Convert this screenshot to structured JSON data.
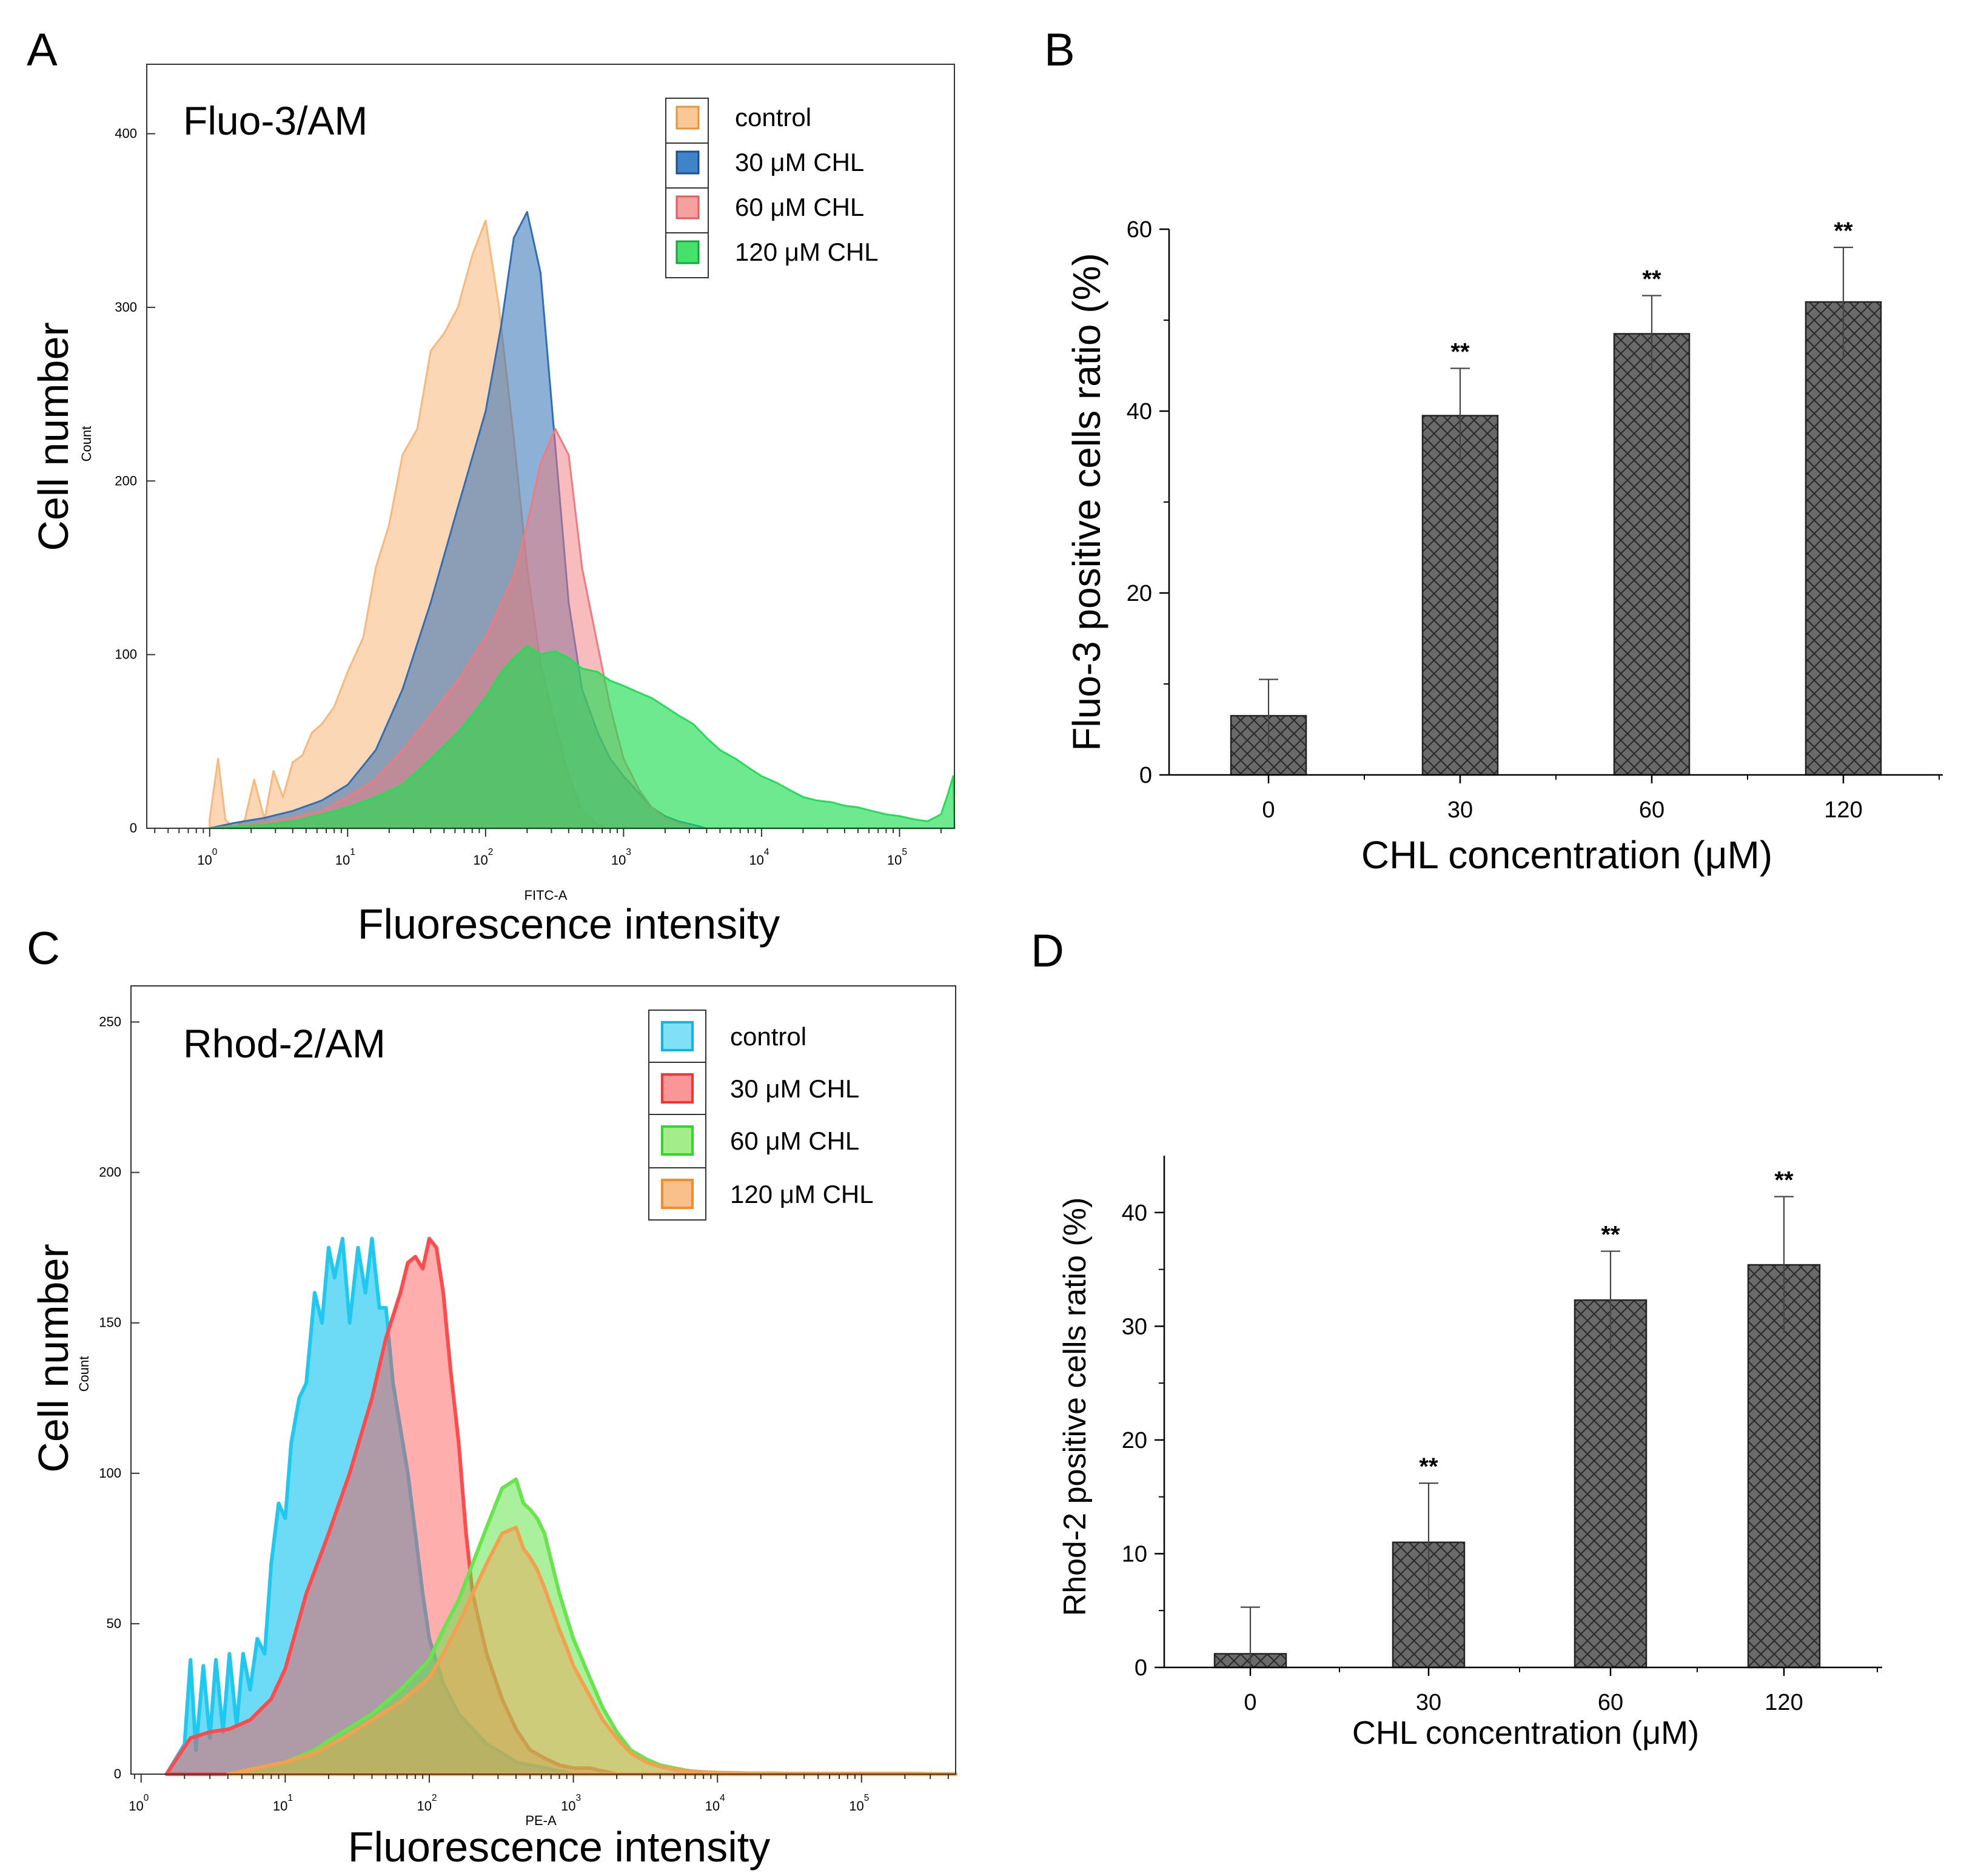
{
  "figure": {
    "panels": [
      {
        "id": "A",
        "label": "A"
      },
      {
        "id": "B",
        "label": "B"
      },
      {
        "id": "C",
        "label": "C"
      },
      {
        "id": "D",
        "label": "D"
      }
    ]
  },
  "chart_data": [
    {
      "panel": "A",
      "type": "area",
      "title": "Fluo-3/AM",
      "xlabel": "Fluorescence intensity",
      "xlabel_small": "FITC-A",
      "ylabel": "Cell number",
      "ylabel_small": "Count",
      "xscale": "log",
      "xlim": [
        0.35,
        250000
      ],
      "ylim": [
        0,
        440
      ],
      "yticks": [
        0,
        100,
        200,
        300,
        400
      ],
      "xticks": [
        {
          "base": "10",
          "exp": "0",
          "value": 1
        },
        {
          "base": "10",
          "exp": "1",
          "value": 10
        },
        {
          "base": "10",
          "exp": "2",
          "value": 100
        },
        {
          "base": "10",
          "exp": "3",
          "value": 1000
        },
        {
          "base": "10",
          "exp": "4",
          "value": 10000
        },
        {
          "base": "10",
          "exp": "5",
          "value": 100000
        }
      ],
      "legend_position": "top-right",
      "series": [
        {
          "name": "control",
          "color": "#f9b77a",
          "alpha": 0.55,
          "x": [
            1.0,
            1.15,
            1.3,
            1.5,
            1.8,
            2.1,
            2.5,
            2.9,
            3.4,
            4.0,
            4.7,
            5.5,
            6.5,
            8,
            10,
            13,
            16,
            20,
            25,
            32,
            40,
            50,
            63,
            80,
            100,
            125,
            160,
            200,
            250,
            320,
            400,
            500,
            650,
            800
          ],
          "y": [
            5,
            40,
            5,
            0,
            5,
            28,
            5,
            33,
            18,
            38,
            42,
            55,
            60,
            70,
            90,
            110,
            150,
            175,
            215,
            230,
            275,
            285,
            300,
            330,
            350,
            300,
            225,
            150,
            95,
            60,
            30,
            10,
            2,
            0
          ]
        },
        {
          "name": "30 μM CHL",
          "color": "#2e6fb5",
          "alpha": 0.55,
          "x": [
            1.0,
            1.5,
            2.5,
            4.0,
            6.5,
            10,
            16,
            25,
            40,
            63,
            100,
            130,
            160,
            200,
            250,
            320,
            400,
            500,
            650,
            800,
            1000,
            1300,
            1600,
            2000,
            2500,
            3200,
            4000
          ],
          "y": [
            0,
            3,
            6,
            10,
            16,
            25,
            45,
            80,
            130,
            185,
            240,
            290,
            340,
            355,
            320,
            220,
            130,
            80,
            55,
            40,
            30,
            20,
            12,
            7,
            4,
            2,
            0
          ]
        },
        {
          "name": "60 μM CHL",
          "color": "#f17a7e",
          "alpha": 0.5,
          "x": [
            1.0,
            2.5,
            4.0,
            6.5,
            10,
            16,
            25,
            40,
            63,
            100,
            160,
            200,
            250,
            320,
            400,
            500,
            650,
            800,
            1000,
            1300,
            1600,
            2000,
            2500,
            3200
          ],
          "y": [
            0,
            3,
            6,
            10,
            18,
            28,
            45,
            65,
            85,
            110,
            145,
            175,
            210,
            230,
            215,
            150,
            105,
            70,
            40,
            22,
            12,
            6,
            3,
            0
          ]
        },
        {
          "name": "120 μM CHL",
          "color": "#22dd55",
          "alpha": 0.65,
          "x": [
            1.0,
            2.5,
            4.0,
            6.5,
            10,
            16,
            25,
            40,
            63,
            100,
            130,
            160,
            200,
            250,
            320,
            400,
            500,
            650,
            800,
            1000,
            1300,
            1600,
            2000,
            2500,
            3200,
            4000,
            5000,
            6500,
            8000,
            10000,
            13000,
            16000,
            20000,
            25000,
            32000,
            40000,
            50000,
            63000,
            80000,
            100000,
            130000,
            160000,
            200000,
            225000,
            245000,
            250000
          ],
          "y": [
            0,
            2,
            4,
            8,
            12,
            18,
            25,
            40,
            55,
            75,
            90,
            98,
            105,
            100,
            102,
            98,
            92,
            90,
            85,
            82,
            78,
            75,
            70,
            65,
            60,
            52,
            45,
            40,
            35,
            30,
            26,
            22,
            18,
            16,
            15,
            13,
            12,
            10,
            8,
            7,
            5,
            4,
            8,
            20,
            30,
            0
          ]
        }
      ]
    },
    {
      "panel": "B",
      "type": "bar",
      "categories": [
        "0",
        "30",
        "60",
        "120"
      ],
      "values": [
        6.5,
        39.5,
        48.5,
        52
      ],
      "errors": [
        4,
        5.2,
        4.2,
        6
      ],
      "significance": [
        "",
        "**",
        "**",
        "**"
      ],
      "title": "",
      "xlabel": "CHL concentration (μM)",
      "ylabel": "Fluo-3 positive cells ratio (%)",
      "ylim": [
        0,
        60
      ],
      "yticks": [
        0,
        20,
        40,
        60
      ],
      "bar_color": "#5f5f5f",
      "pattern": "cross-hatch"
    },
    {
      "panel": "C",
      "type": "area",
      "title": "Rhod-2/AM",
      "xlabel": "Fluorescence intensity",
      "xlabel_small": "PE-A",
      "ylabel": "Cell number",
      "ylabel_small": "Count",
      "xscale": "log",
      "xlim": [
        0.85,
        450000
      ],
      "ylim": [
        0,
        262
      ],
      "yticks": [
        0,
        50,
        100,
        150,
        200,
        250
      ],
      "xticks": [
        {
          "base": "10",
          "exp": "0",
          "value": 1
        },
        {
          "base": "10",
          "exp": "1",
          "value": 10
        },
        {
          "base": "10",
          "exp": "2",
          "value": 100
        },
        {
          "base": "10",
          "exp": "3",
          "value": 1000
        },
        {
          "base": "10",
          "exp": "4",
          "value": 10000
        },
        {
          "base": "10",
          "exp": "5",
          "value": 100000
        }
      ],
      "legend_position": "top-right",
      "series": [
        {
          "name": "control",
          "color": "#1ec8f0",
          "alpha": 0.65,
          "x": [
            1.5,
            2.0,
            2.2,
            2.4,
            2.7,
            3.0,
            3.3,
            3.7,
            4.1,
            4.6,
            5.1,
            5.7,
            6.4,
            7.2,
            8,
            9,
            10,
            11,
            12.5,
            14,
            16,
            18,
            20,
            22,
            25,
            28,
            32,
            36,
            40,
            45,
            50,
            56,
            63,
            71,
            80,
            90,
            100,
            125,
            160,
            200,
            250,
            320,
            400,
            500,
            650,
            800,
            1000,
            1300,
            1600
          ],
          "y": [
            0,
            10,
            38,
            8,
            36,
            12,
            38,
            14,
            40,
            16,
            40,
            28,
            45,
            40,
            70,
            90,
            85,
            110,
            125,
            130,
            160,
            150,
            175,
            165,
            178,
            150,
            175,
            160,
            178,
            155,
            155,
            130,
            115,
            100,
            80,
            60,
            45,
            30,
            20,
            15,
            10,
            7,
            4,
            3,
            2,
            1,
            0,
            0,
            0
          ]
        },
        {
          "name": "30 μM CHL",
          "color": "#ff4b4b",
          "alpha": 0.45,
          "x": [
            1.5,
            2.2,
            3.0,
            4.1,
            5.7,
            8,
            10,
            14,
            20,
            28,
            40,
            50,
            63,
            71,
            80,
            90,
            100,
            112,
            125,
            140,
            160,
            180,
            200,
            250,
            320,
            400,
            500,
            650,
            800,
            1000,
            1300,
            1600,
            2000
          ],
          "y": [
            0,
            12,
            14,
            15,
            18,
            25,
            35,
            60,
            80,
            100,
            125,
            145,
            160,
            170,
            172,
            168,
            178,
            175,
            160,
            135,
            110,
            80,
            60,
            40,
            25,
            15,
            8,
            5,
            3,
            2,
            2,
            1,
            0
          ]
        },
        {
          "name": "60 μM CHL",
          "color": "#66e54d",
          "alpha": 0.55,
          "x": [
            4,
            6.4,
            10,
            16,
            25,
            40,
            63,
            100,
            125,
            160,
            200,
            250,
            320,
            400,
            450,
            500,
            560,
            630,
            710,
            800,
            900,
            1000,
            1300,
            1600,
            2000,
            2500,
            3200,
            4000,
            5000,
            6500,
            8000,
            10000,
            13000,
            16000,
            20000,
            30000,
            50000,
            100000,
            200000,
            450000
          ],
          "y": [
            0,
            2,
            4,
            8,
            14,
            20,
            28,
            38,
            48,
            58,
            70,
            82,
            95,
            98,
            90,
            88,
            85,
            80,
            70,
            60,
            52,
            45,
            32,
            22,
            14,
            8,
            5,
            3,
            2,
            1,
            0.7,
            0.5,
            0.4,
            0.3,
            0.3,
            0.2,
            0.2,
            0.2,
            0.2,
            0
          ]
        },
        {
          "name": "120 μM CHL",
          "color": "#f5a050",
          "alpha": 0.45,
          "x": [
            4,
            6.4,
            10,
            16,
            25,
            40,
            63,
            100,
            125,
            160,
            200,
            250,
            320,
            400,
            450,
            500,
            560,
            630,
            710,
            800,
            900,
            1000,
            1300,
            1600,
            2000,
            2500,
            3200,
            4000,
            5000,
            6500,
            8000,
            10000,
            13000,
            16000,
            20000,
            30000,
            50000,
            100000,
            200000,
            450000
          ],
          "y": [
            0,
            2,
            4,
            7,
            12,
            18,
            24,
            32,
            40,
            50,
            60,
            70,
            80,
            82,
            75,
            72,
            68,
            62,
            55,
            48,
            42,
            36,
            26,
            18,
            12,
            7,
            4,
            2.5,
            1.5,
            1,
            0.7,
            0.5,
            0.4,
            0.3,
            0.3,
            0.2,
            0.2,
            0.2,
            0.2,
            0
          ]
        }
      ]
    },
    {
      "panel": "D",
      "type": "bar",
      "categories": [
        "0",
        "30",
        "60",
        "120"
      ],
      "values": [
        1.2,
        11,
        32.3,
        35.4
      ],
      "errors": [
        4.1,
        5.2,
        4.3,
        6
      ],
      "significance": [
        "",
        "**",
        "**",
        "**"
      ],
      "title": "",
      "xlabel": "CHL concentration (μM)",
      "ylabel": "Rhod-2 positive cells ratio (%)",
      "ylim": [
        0,
        45
      ],
      "yticks": [
        0,
        10,
        20,
        30,
        40
      ],
      "bar_color": "#5f5f5f",
      "pattern": "cross-hatch"
    }
  ]
}
